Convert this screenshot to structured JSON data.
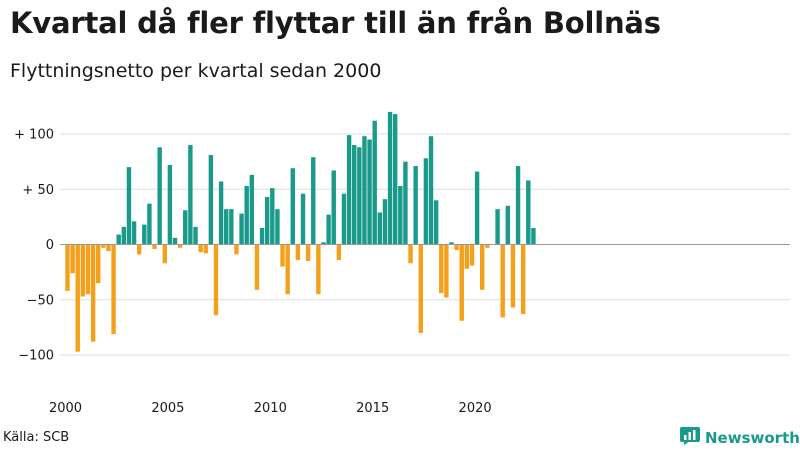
{
  "title": "Kvartal då fler flyttar till än från Bollnäs",
  "subtitle": "Flyttningsnetto per kvartal sedan 2000",
  "source": "Källa: SCB",
  "brand": {
    "name": "Newsworthy",
    "icon": "newsworthy-logo-icon"
  },
  "colors": {
    "positive": "#1a9a8a",
    "negative": "#f5a01a",
    "grid": "#dddddd",
    "zero_line": "#999999"
  },
  "chart_data": {
    "type": "bar",
    "title": "Kvartal då fler flyttar till än från Bollnäs",
    "subtitle": "Flyttningsnetto per kvartal sedan 2000",
    "xlabel": "",
    "ylabel": "",
    "x_start": "2000 Q1",
    "frequency": "quarterly",
    "ylim": [
      -115,
      110
    ],
    "y_ticks": [
      {
        "value": 100,
        "label": "+ 100"
      },
      {
        "value": 50,
        "label": "+  50"
      },
      {
        "value": 0,
        "label": "0"
      },
      {
        "value": -50,
        "label": "−50"
      },
      {
        "value": -100,
        "label": "−100"
      }
    ],
    "x_ticks": [
      {
        "label": "2000",
        "quarter_index": 0
      },
      {
        "label": "2005",
        "quarter_index": 20
      },
      {
        "label": "2010",
        "quarter_index": 40
      },
      {
        "label": "2015",
        "quarter_index": 60
      },
      {
        "label": "2020",
        "quarter_index": 80
      }
    ],
    "grid": true,
    "legend": "none",
    "values": [
      -42,
      -26,
      -97,
      -47,
      -45,
      -88,
      -35,
      -3,
      -6,
      -81,
      9,
      16,
      70,
      21,
      -9,
      18,
      37,
      -4,
      88,
      -17,
      72,
      6,
      -3,
      31,
      90,
      16,
      -7,
      -8,
      81,
      -64,
      57,
      32,
      32,
      -9,
      28,
      53,
      63,
      -41,
      15,
      43,
      51,
      32,
      -20,
      -45,
      69,
      -14,
      46,
      -15,
      79,
      -45,
      2,
      27,
      67,
      -14,
      46,
      99,
      90,
      88,
      98,
      95,
      112,
      29,
      41,
      120,
      118,
      53,
      75,
      -17,
      71,
      -80,
      78,
      98,
      40,
      -44,
      -48,
      2,
      -5,
      -69,
      -22,
      -19,
      66,
      -41,
      -3,
      0,
      32,
      -66,
      35,
      -57,
      71,
      -63,
      58,
      15
    ]
  }
}
